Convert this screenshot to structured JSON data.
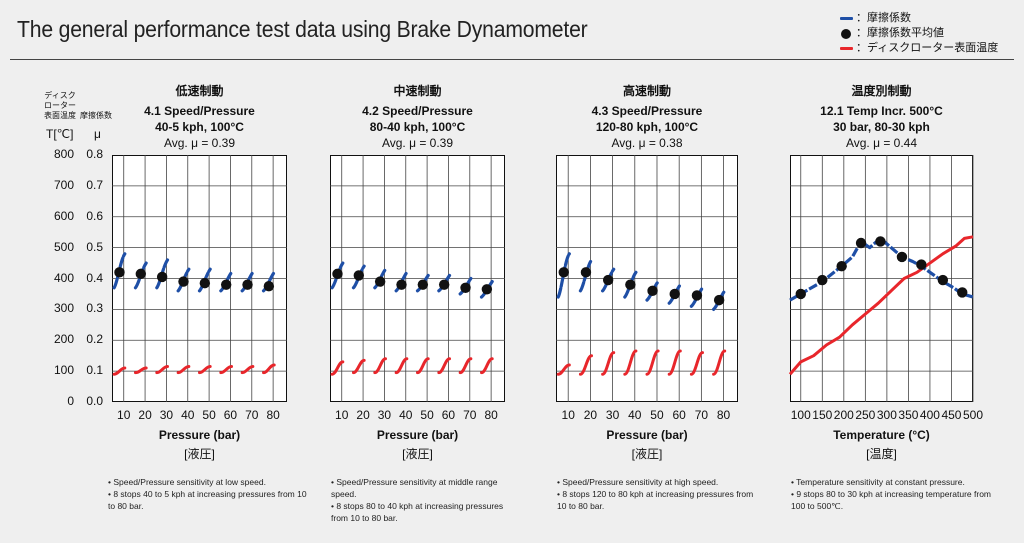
{
  "title": "The general performance test data using Brake Dynamometer",
  "legend": [
    {
      "label": "：摩擦係数",
      "kind": "line",
      "color": "#1f4fa6"
    },
    {
      "label": "：摩擦係数平均値",
      "kind": "dot",
      "color": "#111111"
    },
    {
      "label": "：ディスクローター表面温度",
      "kind": "line",
      "color": "#e8262b"
    }
  ],
  "yaxis": {
    "temp_header": "ディスク\nローター\n表面温度",
    "mu_header": "摩擦係数",
    "temp_unit": "T[℃]",
    "mu_unit": "μ",
    "temp_ticks": [
      "800",
      "700",
      "600",
      "500",
      "400",
      "300",
      "200",
      "100",
      "0"
    ],
    "mu_ticks": [
      "0.8",
      "0.7",
      "0.6",
      "0.5",
      "0.4",
      "0.3",
      "0.2",
      "0.1",
      "0.0"
    ]
  },
  "chart_data": [
    {
      "type": "line",
      "jp_title": "低速制動",
      "title_line1": "4.1 Speed/Pressure",
      "title_line2": "40-5 kph, 100°C",
      "avg_label": "Avg. μ = 0.39",
      "xlabel": "Pressure (bar)",
      "xlabel_jp": "[液圧]",
      "x_ticks": [
        "10",
        "20",
        "30",
        "40",
        "50",
        "60",
        "70",
        "80"
      ],
      "ylim_mu": [
        0,
        0.8
      ],
      "ylim_temp": [
        0,
        800
      ],
      "mu_segments": [
        [
          0.37,
          0.48
        ],
        [
          0.37,
          0.45
        ],
        [
          0.37,
          0.46
        ],
        [
          0.36,
          0.43
        ],
        [
          0.36,
          0.43
        ],
        [
          0.36,
          0.42
        ],
        [
          0.36,
          0.42
        ],
        [
          0.36,
          0.42
        ]
      ],
      "mu_avg": [
        0.42,
        0.415,
        0.405,
        0.39,
        0.385,
        0.38,
        0.38,
        0.375
      ],
      "temp_segments": [
        [
          90,
          110
        ],
        [
          95,
          110
        ],
        [
          95,
          115
        ],
        [
          95,
          115
        ],
        [
          95,
          115
        ],
        [
          95,
          115
        ],
        [
          95,
          115
        ],
        [
          95,
          120
        ]
      ],
      "notes": [
        "• Speed/Pressure sensitivity at low speed.",
        "• 8 stops 40 to 5 kph at increasing pressures from 10 to 80 bar."
      ]
    },
    {
      "type": "line",
      "jp_title": "中速制動",
      "title_line1": "4.2 Speed/Pressure",
      "title_line2": "80-40 kph, 100°C",
      "avg_label": "Avg. μ = 0.39",
      "xlabel": "Pressure (bar)",
      "xlabel_jp": "[液圧]",
      "x_ticks": [
        "10",
        "20",
        "30",
        "40",
        "50",
        "60",
        "70",
        "80"
      ],
      "ylim_mu": [
        0,
        0.8
      ],
      "ylim_temp": [
        0,
        800
      ],
      "mu_segments": [
        [
          0.37,
          0.45
        ],
        [
          0.37,
          0.44
        ],
        [
          0.37,
          0.43
        ],
        [
          0.36,
          0.42
        ],
        [
          0.36,
          0.41
        ],
        [
          0.36,
          0.41
        ],
        [
          0.35,
          0.4
        ],
        [
          0.34,
          0.39
        ]
      ],
      "mu_avg": [
        0.415,
        0.41,
        0.39,
        0.38,
        0.38,
        0.38,
        0.37,
        0.365
      ],
      "temp_segments": [
        [
          90,
          130
        ],
        [
          95,
          135
        ],
        [
          95,
          140
        ],
        [
          95,
          140
        ],
        [
          95,
          140
        ],
        [
          95,
          140
        ],
        [
          95,
          140
        ],
        [
          95,
          140
        ]
      ],
      "notes": [
        "• Speed/Pressure sensitivity at middle range speed.",
        "• 8 stops 80 to 40 kph at increasing pressures from 10 to 80 bar."
      ]
    },
    {
      "type": "line",
      "jp_title": "高速制動",
      "title_line1": "4.3 Speed/Pressure",
      "title_line2": "120-80 kph, 100°C",
      "avg_label": "Avg. μ = 0.38",
      "xlabel": "Pressure (bar)",
      "xlabel_jp": "[液圧]",
      "x_ticks": [
        "10",
        "20",
        "30",
        "40",
        "50",
        "60",
        "70",
        "80"
      ],
      "ylim_mu": [
        0,
        0.8
      ],
      "ylim_temp": [
        0,
        800
      ],
      "mu_segments": [
        [
          0.34,
          0.48
        ],
        [
          0.36,
          0.46
        ],
        [
          0.36,
          0.43
        ],
        [
          0.34,
          0.42
        ],
        [
          0.33,
          0.39
        ],
        [
          0.32,
          0.38
        ],
        [
          0.31,
          0.37
        ],
        [
          0.3,
          0.36
        ]
      ],
      "mu_avg": [
        0.42,
        0.42,
        0.395,
        0.38,
        0.36,
        0.35,
        0.345,
        0.33
      ],
      "temp_segments": [
        [
          90,
          120
        ],
        [
          90,
          150
        ],
        [
          90,
          160
        ],
        [
          90,
          165
        ],
        [
          90,
          165
        ],
        [
          90,
          165
        ],
        [
          90,
          160
        ],
        [
          90,
          165
        ]
      ],
      "notes": [
        "• Speed/Pressure sensitivity at high speed.",
        "• 8 stops 120 to 80 kph at increasing pressures from 10 to 80 bar."
      ]
    },
    {
      "type": "line",
      "jp_title": "温度別制動",
      "title_line1": "12.1 Temp Incr. 500°C",
      "title_line2": "30 bar, 80-30 kph",
      "avg_label": "Avg. μ = 0.44",
      "xlabel": "Temperature (°C)",
      "xlabel_jp": "[温度]",
      "x_ticks": [
        "100",
        "150",
        "200",
        "250",
        "300",
        "350",
        "400",
        "450",
        "500"
      ],
      "ylim_mu": [
        0,
        0.8
      ],
      "ylim_temp": [
        0,
        800
      ],
      "xlim": [
        75,
        500
      ],
      "mu_avg_points": [
        [
          100,
          0.35
        ],
        [
          150,
          0.395
        ],
        [
          195,
          0.44
        ],
        [
          240,
          0.515
        ],
        [
          285,
          0.52
        ],
        [
          335,
          0.47
        ],
        [
          380,
          0.445
        ],
        [
          430,
          0.395
        ],
        [
          475,
          0.355
        ]
      ],
      "mu_curve": [
        [
          75,
          0.33
        ],
        [
          100,
          0.35
        ],
        [
          150,
          0.39
        ],
        [
          195,
          0.44
        ],
        [
          220,
          0.47
        ],
        [
          240,
          0.52
        ],
        [
          260,
          0.5
        ],
        [
          285,
          0.53
        ],
        [
          310,
          0.5
        ],
        [
          335,
          0.47
        ],
        [
          360,
          0.455
        ],
        [
          380,
          0.44
        ],
        [
          400,
          0.42
        ],
        [
          430,
          0.39
        ],
        [
          455,
          0.37
        ],
        [
          475,
          0.35
        ],
        [
          500,
          0.34
        ]
      ],
      "temp_curve": [
        [
          75,
          90
        ],
        [
          100,
          130
        ],
        [
          130,
          150
        ],
        [
          160,
          185
        ],
        [
          190,
          210
        ],
        [
          220,
          250
        ],
        [
          250,
          285
        ],
        [
          280,
          320
        ],
        [
          310,
          360
        ],
        [
          340,
          400
        ],
        [
          370,
          420
        ],
        [
          400,
          450
        ],
        [
          430,
          480
        ],
        [
          460,
          505
        ],
        [
          480,
          530
        ],
        [
          500,
          535
        ]
      ],
      "notes": [
        "• Temperature sensitivity at constant pressure.",
        "• 9 stops 80 to 30 kph at increasing temperature from 100 to 500℃."
      ]
    }
  ]
}
